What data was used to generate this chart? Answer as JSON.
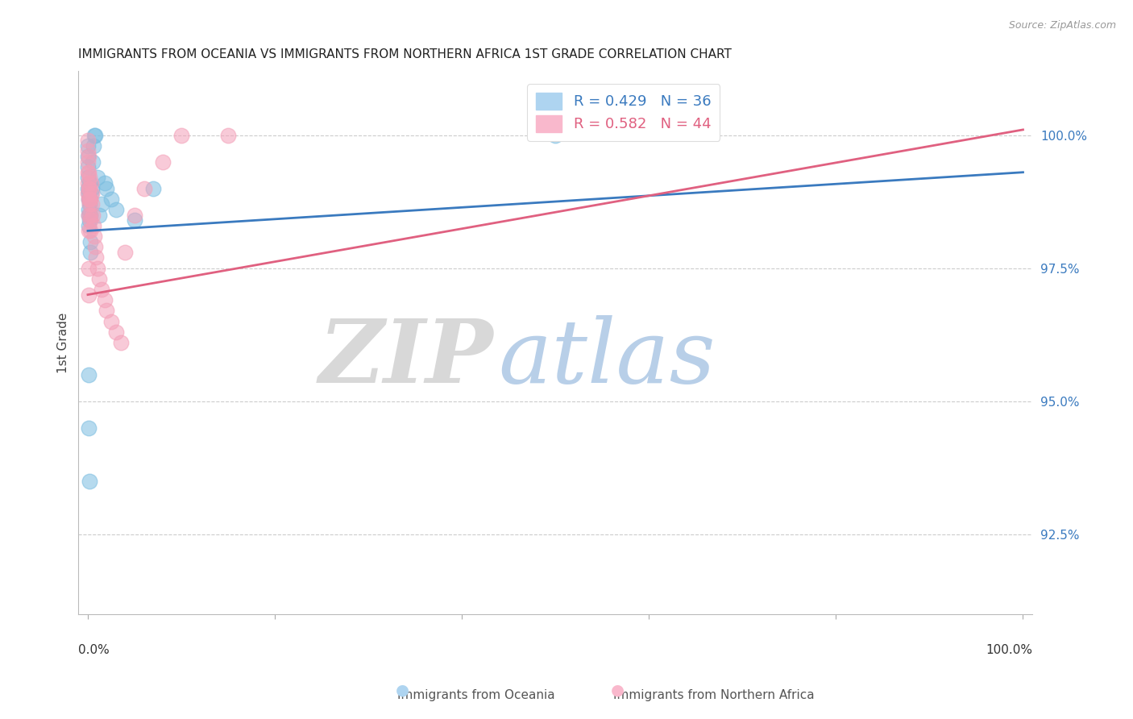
{
  "title": "IMMIGRANTS FROM OCEANIA VS IMMIGRANTS FROM NORTHERN AFRICA 1ST GRADE CORRELATION CHART",
  "source": "Source: ZipAtlas.com",
  "ylabel": "1st Grade",
  "xlim": [
    -1,
    101
  ],
  "ylim": [
    91.0,
    101.2
  ],
  "yticks": [
    92.5,
    95.0,
    97.5,
    100.0
  ],
  "ytick_labels": [
    "92.5%",
    "95.0%",
    "97.5%",
    "100.0%"
  ],
  "series_oceania": {
    "label": "Immigrants from Oceania",
    "color": "#7bbde0",
    "R": 0.429,
    "N": 36,
    "x": [
      0.0,
      0.0,
      0.0,
      0.0,
      0.0,
      0.05,
      0.05,
      0.1,
      0.1,
      0.1,
      0.15,
      0.15,
      0.2,
      0.2,
      0.25,
      0.3,
      0.3,
      0.35,
      0.4,
      0.5,
      0.6,
      0.7,
      0.8,
      1.0,
      1.2,
      1.5,
      1.8,
      2.0,
      2.5,
      3.0,
      5.0,
      7.0,
      0.05,
      0.1,
      0.2,
      50.0
    ],
    "y": [
      99.8,
      99.6,
      99.4,
      99.2,
      99.0,
      98.8,
      98.5,
      98.9,
      98.6,
      98.3,
      98.7,
      98.4,
      99.1,
      98.8,
      98.5,
      98.0,
      97.8,
      98.9,
      99.0,
      99.5,
      99.8,
      100.0,
      100.0,
      99.2,
      98.5,
      98.7,
      99.1,
      99.0,
      98.8,
      98.6,
      98.4,
      99.0,
      95.5,
      94.5,
      93.5,
      100.0
    ]
  },
  "series_n_africa": {
    "label": "Immigrants from Northern Africa",
    "color": "#f4a0b8",
    "R": 0.582,
    "N": 44,
    "x": [
      0.0,
      0.0,
      0.0,
      0.0,
      0.0,
      0.0,
      0.05,
      0.05,
      0.05,
      0.1,
      0.1,
      0.1,
      0.15,
      0.15,
      0.2,
      0.2,
      0.25,
      0.25,
      0.3,
      0.3,
      0.35,
      0.4,
      0.45,
      0.5,
      0.6,
      0.7,
      0.8,
      0.9,
      1.0,
      1.2,
      1.5,
      1.8,
      2.0,
      2.5,
      3.0,
      3.5,
      4.0,
      5.0,
      6.0,
      8.0,
      10.0,
      15.0,
      0.05,
      0.1
    ],
    "y": [
      99.9,
      99.7,
      99.5,
      99.3,
      99.1,
      98.9,
      99.6,
      99.3,
      99.0,
      98.8,
      98.5,
      98.2,
      99.2,
      98.8,
      99.0,
      98.7,
      98.5,
      98.2,
      98.8,
      98.4,
      99.1,
      98.9,
      98.7,
      98.5,
      98.3,
      98.1,
      97.9,
      97.7,
      97.5,
      97.3,
      97.1,
      96.9,
      96.7,
      96.5,
      96.3,
      96.1,
      97.8,
      98.5,
      99.0,
      99.5,
      100.0,
      100.0,
      97.5,
      97.0
    ]
  },
  "trend_oceania_color": "#3a7abf",
  "trend_n_africa_color": "#e06080",
  "background_color": "#ffffff",
  "title_fontsize": 11,
  "watermark_zip_color": "#d8d8d8",
  "watermark_atlas_color": "#b8cfe8"
}
